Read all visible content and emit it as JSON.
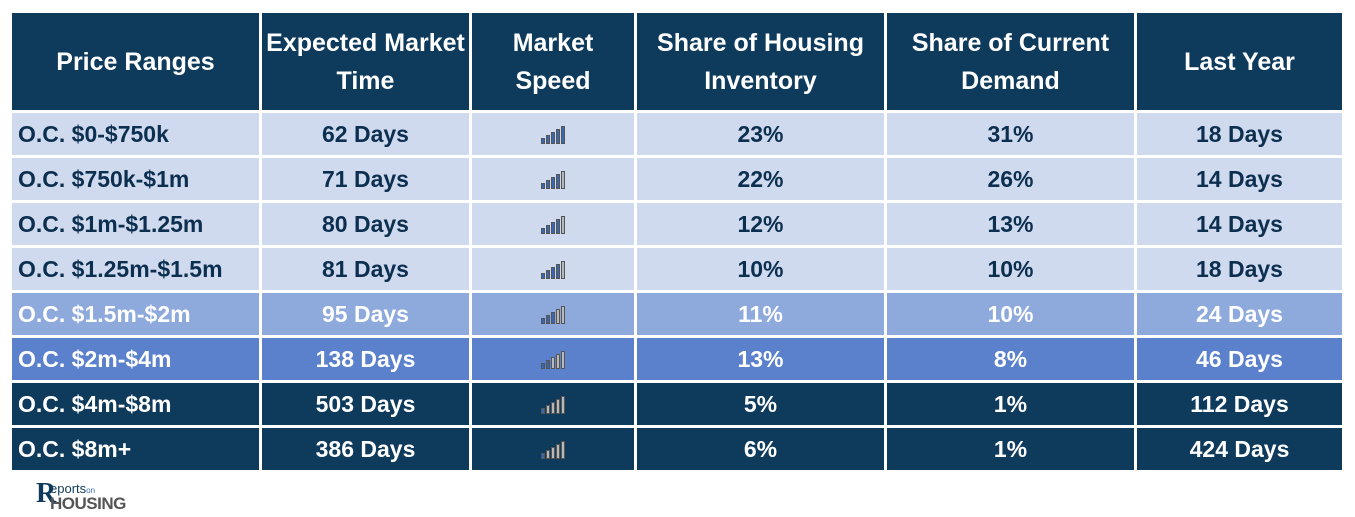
{
  "table": {
    "headers": [
      "Price Ranges",
      "Expected Market Time",
      "Market Speed",
      "Share of Housing Inventory",
      "Share of Current Demand",
      "Last Year"
    ],
    "rows": [
      {
        "range": "O.C. $0-$750k",
        "market_time": "62 Days",
        "speed_level": 5,
        "inventory": "23%",
        "demand": "31%",
        "last_year": "18 Days"
      },
      {
        "range": "O.C. $750k-$1m",
        "market_time": "71 Days",
        "speed_level": 4,
        "inventory": "22%",
        "demand": "26%",
        "last_year": "14 Days"
      },
      {
        "range": "O.C. $1m-$1.25m",
        "market_time": "80 Days",
        "speed_level": 4,
        "inventory": "12%",
        "demand": "13%",
        "last_year": "14 Days"
      },
      {
        "range": "O.C. $1.25m-$1.5m",
        "market_time": "81 Days",
        "speed_level": 4,
        "inventory": "10%",
        "demand": "10%",
        "last_year": "18 Days"
      },
      {
        "range": "O.C. $1.5m-$2m",
        "market_time": "95 Days",
        "speed_level": 3,
        "inventory": "11%",
        "demand": "10%",
        "last_year": "24 Days"
      },
      {
        "range": "O.C. $2m-$4m",
        "market_time": "138 Days",
        "speed_level": 2,
        "inventory": "13%",
        "demand": "8%",
        "last_year": "46 Days"
      },
      {
        "range": "O.C. $4m-$8m",
        "market_time": "503 Days",
        "speed_level": 1,
        "inventory": "5%",
        "demand": "1%",
        "last_year": "112 Days"
      },
      {
        "range": "O.C. $8m+",
        "market_time": "386 Days",
        "speed_level": 1,
        "inventory": "6%",
        "demand": "1%",
        "last_year": "424 Days"
      }
    ]
  },
  "logo": {
    "r_mark": "R",
    "line1": "eports",
    "line1_small": "on",
    "line2": "HOUSING"
  },
  "colors": {
    "header_bg": "#0e3a5c",
    "row_light": "#cfdaee",
    "row_mid": "#8eaadd",
    "row_blue": "#5b80cc",
    "row_dark": "#0e3a5c",
    "speed_on": "#3a68b0",
    "speed_off": "#b8b8b8",
    "text_dark": "#0c2f50"
  }
}
